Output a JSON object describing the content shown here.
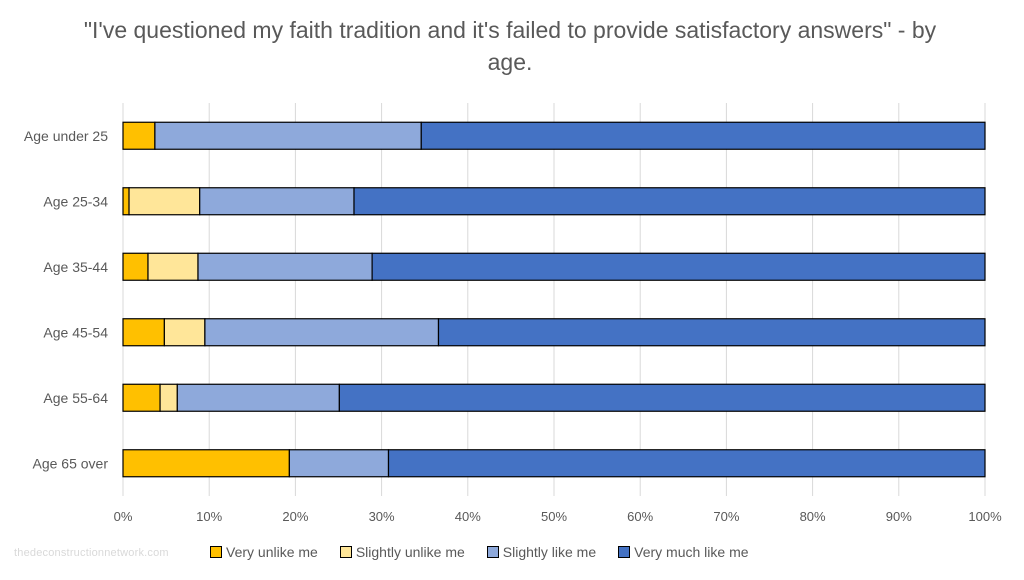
{
  "chart_data": {
    "type": "bar",
    "orientation": "horizontal",
    "stacked": "percent",
    "title": "\"I've questioned my faith tradition and it's failed to provide satisfactory answers\" - by age.",
    "categories": [
      "Age under 25",
      "Age 25-34",
      "Age 35-44",
      "Age 45-54",
      "Age 55-64",
      "Age 65 over"
    ],
    "series": [
      {
        "name": "Very unlike me",
        "color": "#FFC000",
        "values": [
          3.7,
          0.7,
          2.9,
          4.8,
          4.3,
          19.3
        ]
      },
      {
        "name": "Slightly unlike me",
        "color": "#FFE699",
        "values": [
          0,
          8.2,
          5.8,
          4.7,
          2.0,
          0
        ]
      },
      {
        "name": "Slightly like me",
        "color": "#8EA9DB",
        "values": [
          30.9,
          17.9,
          20.2,
          27.1,
          18.8,
          11.5
        ]
      },
      {
        "name": "Very much like me",
        "color": "#4472C4",
        "values": [
          65.4,
          73.2,
          71.1,
          63.4,
          74.9,
          69.2
        ]
      }
    ],
    "xlim": [
      0,
      100
    ],
    "xticks": [
      "0%",
      "10%",
      "20%",
      "30%",
      "40%",
      "50%",
      "60%",
      "70%",
      "80%",
      "90%",
      "100%"
    ],
    "grid": true,
    "legend_position": "bottom"
  },
  "watermark": "thedeconstructionnetwork.com"
}
